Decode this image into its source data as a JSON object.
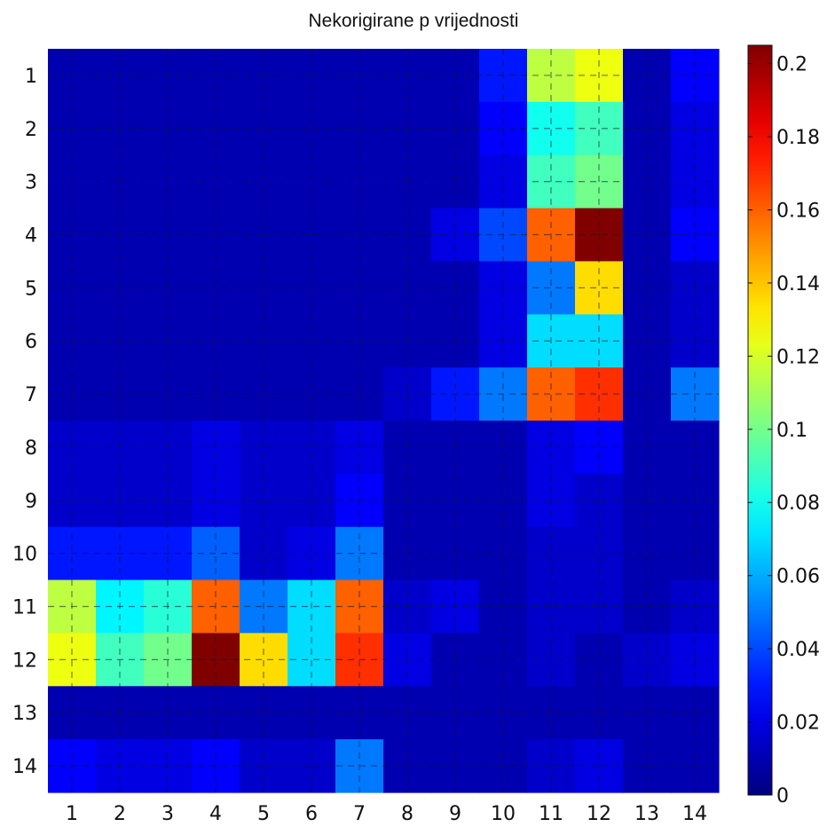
{
  "chart_data": {
    "type": "heatmap",
    "title": "Nekorigirane p vrijednosti",
    "x_categories": [
      "1",
      "2",
      "3",
      "4",
      "5",
      "6",
      "7",
      "8",
      "9",
      "10",
      "11",
      "12",
      "13",
      "14"
    ],
    "y_categories": [
      "1",
      "2",
      "3",
      "4",
      "5",
      "6",
      "7",
      "8",
      "9",
      "10",
      "11",
      "12",
      "13",
      "14"
    ],
    "colorbar": {
      "min": 0,
      "max": 0.205,
      "colormap": "jet",
      "ticks": [
        0,
        0.02,
        0.04,
        0.06,
        0.08,
        0.1,
        0.12,
        0.14,
        0.16,
        0.18,
        0.2
      ],
      "tick_labels": [
        "0",
        "0.02",
        "0.04",
        "0.06",
        "0.08",
        "0.1",
        "0.12",
        "0.14",
        "0.16",
        "0.18",
        "0.2"
      ]
    },
    "grid": "dashed",
    "values": [
      [
        0.01,
        0.01,
        0.01,
        0.01,
        0.01,
        0.01,
        0.01,
        0.01,
        0.01,
        0.03,
        0.115,
        0.125,
        0.01,
        0.025
      ],
      [
        0.01,
        0.01,
        0.01,
        0.01,
        0.01,
        0.01,
        0.01,
        0.01,
        0.01,
        0.025,
        0.08,
        0.09,
        0.01,
        0.02
      ],
      [
        0.01,
        0.01,
        0.01,
        0.01,
        0.01,
        0.01,
        0.01,
        0.01,
        0.01,
        0.02,
        0.09,
        0.1,
        0.01,
        0.02
      ],
      [
        0.01,
        0.01,
        0.01,
        0.01,
        0.01,
        0.01,
        0.01,
        0.01,
        0.02,
        0.04,
        0.16,
        0.205,
        0.01,
        0.025
      ],
      [
        0.01,
        0.01,
        0.01,
        0.01,
        0.01,
        0.01,
        0.01,
        0.01,
        0.01,
        0.02,
        0.05,
        0.135,
        0.01,
        0.015
      ],
      [
        0.01,
        0.01,
        0.01,
        0.01,
        0.01,
        0.01,
        0.01,
        0.01,
        0.01,
        0.02,
        0.07,
        0.07,
        0.01,
        0.015
      ],
      [
        0.01,
        0.01,
        0.01,
        0.01,
        0.01,
        0.01,
        0.01,
        0.015,
        0.03,
        0.05,
        0.16,
        0.17,
        0.01,
        0.05
      ],
      [
        0.015,
        0.015,
        0.015,
        0.02,
        0.015,
        0.015,
        0.02,
        0.01,
        0.01,
        0.01,
        0.02,
        0.025,
        0.01,
        0.01
      ],
      [
        0.015,
        0.015,
        0.015,
        0.02,
        0.015,
        0.015,
        0.025,
        0.01,
        0.01,
        0.01,
        0.02,
        0.015,
        0.01,
        0.01
      ],
      [
        0.03,
        0.03,
        0.03,
        0.045,
        0.015,
        0.02,
        0.05,
        0.01,
        0.01,
        0.01,
        0.015,
        0.015,
        0.01,
        0.01
      ],
      [
        0.115,
        0.075,
        0.085,
        0.16,
        0.05,
        0.07,
        0.16,
        0.015,
        0.02,
        0.01,
        0.015,
        0.015,
        0.01,
        0.015
      ],
      [
        0.125,
        0.09,
        0.1,
        0.205,
        0.135,
        0.07,
        0.17,
        0.02,
        0.01,
        0.01,
        0.015,
        0.01,
        0.015,
        0.02
      ],
      [
        0.01,
        0.01,
        0.01,
        0.01,
        0.01,
        0.01,
        0.01,
        0.01,
        0.01,
        0.01,
        0.01,
        0.01,
        0.01,
        0.01
      ],
      [
        0.025,
        0.02,
        0.02,
        0.025,
        0.015,
        0.015,
        0.05,
        0.01,
        0.01,
        0.01,
        0.015,
        0.02,
        0.01,
        0.01
      ]
    ]
  }
}
